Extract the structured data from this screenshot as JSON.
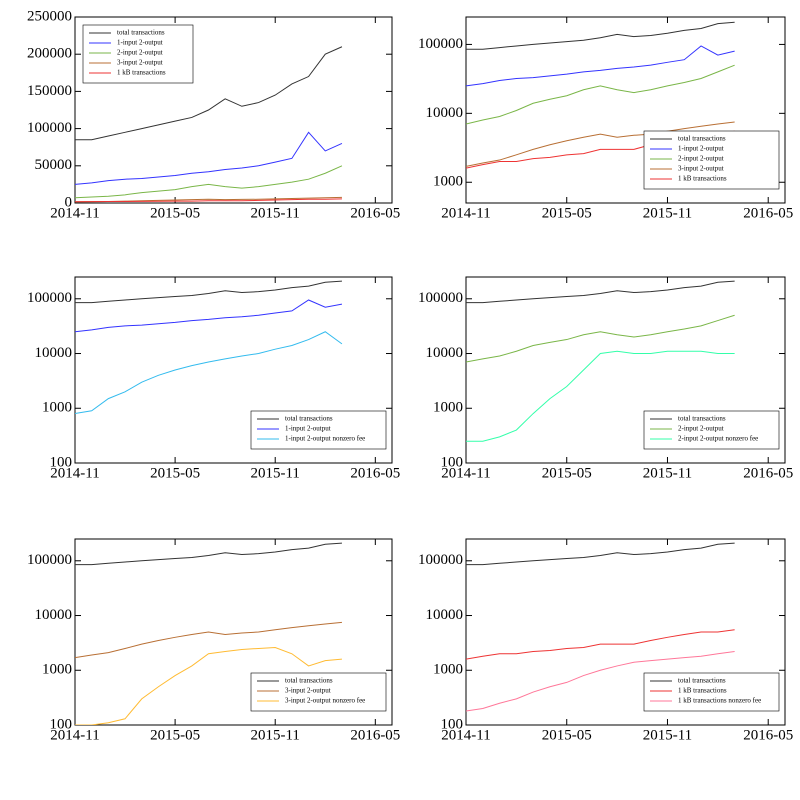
{
  "chart_data": [
    {
      "type": "line",
      "log": false,
      "legend": "upper left",
      "x": [
        "2014-11",
        "2014-12",
        "2015-01",
        "2015-02",
        "2015-03",
        "2015-04",
        "2015-05",
        "2015-06",
        "2015-07",
        "2015-08",
        "2015-09",
        "2015-10",
        "2015-11",
        "2015-12",
        "2016-01",
        "2016-02",
        "2016-03"
      ],
      "xlim": [
        "2014-11",
        "2016-06"
      ],
      "xticks": [
        "2014-11",
        "2015-05",
        "2015-11",
        "2016-05"
      ],
      "ylim": [
        0,
        250000
      ],
      "yticks": [
        0,
        50000,
        100000,
        150000,
        200000,
        250000
      ],
      "series": [
        {
          "name": "total transactions",
          "color": "#333333",
          "values": [
            85000,
            85000,
            90000,
            95000,
            100000,
            105000,
            110000,
            115000,
            125000,
            140000,
            130000,
            135000,
            145000,
            160000,
            170000,
            200000,
            210000
          ]
        },
        {
          "name": "1-input 2-output",
          "color": "#3333ff",
          "values": [
            25000,
            27000,
            30000,
            32000,
            33000,
            35000,
            37000,
            40000,
            42000,
            45000,
            47000,
            50000,
            55000,
            60000,
            95000,
            70000,
            80000
          ]
        },
        {
          "name": "2-input 2-output",
          "color": "#7ab648",
          "values": [
            7000,
            8000,
            9000,
            11000,
            14000,
            16000,
            18000,
            22000,
            25000,
            22000,
            20000,
            22000,
            25000,
            28000,
            32000,
            40000,
            50000
          ]
        },
        {
          "name": "3-input 2-output",
          "color": "#b86f34",
          "values": [
            1700,
            1900,
            2100,
            2500,
            3000,
            3500,
            4000,
            4500,
            5000,
            4500,
            4800,
            5000,
            5500,
            6000,
            6500,
            7000,
            7500
          ]
        },
        {
          "name": "1 kB transactions",
          "color": "#ee3333",
          "values": [
            1600,
            1800,
            2000,
            2000,
            2200,
            2300,
            2500,
            2600,
            3000,
            3000,
            3000,
            3500,
            4000,
            4500,
            5000,
            5000,
            5500
          ]
        }
      ]
    },
    {
      "type": "line",
      "log": true,
      "legend": "lower right",
      "x": [
        "2014-11",
        "2014-12",
        "2015-01",
        "2015-02",
        "2015-03",
        "2015-04",
        "2015-05",
        "2015-06",
        "2015-07",
        "2015-08",
        "2015-09",
        "2015-10",
        "2015-11",
        "2015-12",
        "2016-01",
        "2016-02",
        "2016-03"
      ],
      "xlim": [
        "2014-11",
        "2016-06"
      ],
      "xticks": [
        "2014-11",
        "2015-05",
        "2015-11",
        "2016-05"
      ],
      "ylim": [
        500,
        250000
      ],
      "yticks": [
        1000,
        10000,
        100000
      ],
      "series": [
        {
          "name": "total transactions",
          "color": "#333333",
          "values": [
            85000,
            85000,
            90000,
            95000,
            100000,
            105000,
            110000,
            115000,
            125000,
            140000,
            130000,
            135000,
            145000,
            160000,
            170000,
            200000,
            210000
          ]
        },
        {
          "name": "1-input 2-output",
          "color": "#3333ff",
          "values": [
            25000,
            27000,
            30000,
            32000,
            33000,
            35000,
            37000,
            40000,
            42000,
            45000,
            47000,
            50000,
            55000,
            60000,
            95000,
            70000,
            80000
          ]
        },
        {
          "name": "2-input 2-output",
          "color": "#7ab648",
          "values": [
            7000,
            8000,
            9000,
            11000,
            14000,
            16000,
            18000,
            22000,
            25000,
            22000,
            20000,
            22000,
            25000,
            28000,
            32000,
            40000,
            50000
          ]
        },
        {
          "name": "3-input 2-output",
          "color": "#b86f34",
          "values": [
            1700,
            1900,
            2100,
            2500,
            3000,
            3500,
            4000,
            4500,
            5000,
            4500,
            4800,
            5000,
            5500,
            6000,
            6500,
            7000,
            7500
          ]
        },
        {
          "name": "1 kB transactions",
          "color": "#ee3333",
          "values": [
            1600,
            1800,
            2000,
            2000,
            2200,
            2300,
            2500,
            2600,
            3000,
            3000,
            3000,
            3500,
            4000,
            4500,
            5000,
            5000,
            5500
          ]
        }
      ]
    },
    {
      "type": "line",
      "log": true,
      "legend": "lower right",
      "x": [
        "2014-11",
        "2014-12",
        "2015-01",
        "2015-02",
        "2015-03",
        "2015-04",
        "2015-05",
        "2015-06",
        "2015-07",
        "2015-08",
        "2015-09",
        "2015-10",
        "2015-11",
        "2015-12",
        "2016-01",
        "2016-02",
        "2016-03"
      ],
      "xlim": [
        "2014-11",
        "2016-06"
      ],
      "xticks": [
        "2014-11",
        "2015-05",
        "2015-11",
        "2016-05"
      ],
      "ylim": [
        100,
        250000
      ],
      "yticks": [
        100,
        1000,
        10000,
        100000
      ],
      "series": [
        {
          "name": "total transactions",
          "color": "#333333",
          "values": [
            85000,
            85000,
            90000,
            95000,
            100000,
            105000,
            110000,
            115000,
            125000,
            140000,
            130000,
            135000,
            145000,
            160000,
            170000,
            200000,
            210000
          ]
        },
        {
          "name": "1-input 2-output",
          "color": "#3333ff",
          "values": [
            25000,
            27000,
            30000,
            32000,
            33000,
            35000,
            37000,
            40000,
            42000,
            45000,
            47000,
            50000,
            55000,
            60000,
            95000,
            70000,
            80000
          ]
        },
        {
          "name": "1-input 2-output nonzero fee",
          "color": "#33bbee",
          "values": [
            800,
            900,
            1500,
            2000,
            3000,
            4000,
            5000,
            6000,
            7000,
            8000,
            9000,
            10000,
            12000,
            14000,
            18000,
            25000,
            15000
          ]
        }
      ]
    },
    {
      "type": "line",
      "log": true,
      "legend": "lower right",
      "x": [
        "2014-11",
        "2014-12",
        "2015-01",
        "2015-02",
        "2015-03",
        "2015-04",
        "2015-05",
        "2015-06",
        "2015-07",
        "2015-08",
        "2015-09",
        "2015-10",
        "2015-11",
        "2015-12",
        "2016-01",
        "2016-02",
        "2016-03"
      ],
      "xlim": [
        "2014-11",
        "2016-06"
      ],
      "xticks": [
        "2014-11",
        "2015-05",
        "2015-11",
        "2016-05"
      ],
      "ylim": [
        100,
        250000
      ],
      "yticks": [
        100,
        1000,
        10000,
        100000
      ],
      "series": [
        {
          "name": "total transactions",
          "color": "#333333",
          "values": [
            85000,
            85000,
            90000,
            95000,
            100000,
            105000,
            110000,
            115000,
            125000,
            140000,
            130000,
            135000,
            145000,
            160000,
            170000,
            200000,
            210000
          ]
        },
        {
          "name": "2-input 2-output",
          "color": "#7ab648",
          "values": [
            7000,
            8000,
            9000,
            11000,
            14000,
            16000,
            18000,
            22000,
            25000,
            22000,
            20000,
            22000,
            25000,
            28000,
            32000,
            40000,
            50000
          ]
        },
        {
          "name": "2-input 2-output nonzero fee",
          "color": "#33ffaa",
          "values": [
            250,
            250,
            300,
            400,
            800,
            1500,
            2500,
            5000,
            10000,
            11000,
            10000,
            10000,
            11000,
            11000,
            11000,
            10000,
            10000
          ]
        }
      ]
    },
    {
      "type": "line",
      "log": true,
      "legend": "lower right",
      "x": [
        "2014-11",
        "2014-12",
        "2015-01",
        "2015-02",
        "2015-03",
        "2015-04",
        "2015-05",
        "2015-06",
        "2015-07",
        "2015-08",
        "2015-09",
        "2015-10",
        "2015-11",
        "2015-12",
        "2016-01",
        "2016-02",
        "2016-03"
      ],
      "xlim": [
        "2014-11",
        "2016-06"
      ],
      "xticks": [
        "2014-11",
        "2015-05",
        "2015-11",
        "2016-05"
      ],
      "ylim": [
        100,
        250000
      ],
      "yticks": [
        100,
        1000,
        10000,
        100000
      ],
      "series": [
        {
          "name": "total transactions",
          "color": "#333333",
          "values": [
            85000,
            85000,
            90000,
            95000,
            100000,
            105000,
            110000,
            115000,
            125000,
            140000,
            130000,
            135000,
            145000,
            160000,
            170000,
            200000,
            210000
          ]
        },
        {
          "name": "3-input 2-output",
          "color": "#b86f34",
          "values": [
            1700,
            1900,
            2100,
            2500,
            3000,
            3500,
            4000,
            4500,
            5000,
            4500,
            4800,
            5000,
            5500,
            6000,
            6500,
            7000,
            7500
          ]
        },
        {
          "name": "3-input 2-output nonzero fee",
          "color": "#ffbb33",
          "values": [
            100,
            100,
            110,
            130,
            300,
            500,
            800,
            1200,
            2000,
            2200,
            2400,
            2500,
            2600,
            2000,
            1200,
            1500,
            1600
          ]
        }
      ]
    },
    {
      "type": "line",
      "log": true,
      "legend": "lower right",
      "x": [
        "2014-11",
        "2014-12",
        "2015-01",
        "2015-02",
        "2015-03",
        "2015-04",
        "2015-05",
        "2015-06",
        "2015-07",
        "2015-08",
        "2015-09",
        "2015-10",
        "2015-11",
        "2015-12",
        "2016-01",
        "2016-02",
        "2016-03"
      ],
      "xlim": [
        "2014-11",
        "2016-06"
      ],
      "xticks": [
        "2014-11",
        "2015-05",
        "2015-11",
        "2016-05"
      ],
      "ylim": [
        100,
        250000
      ],
      "yticks": [
        100,
        1000,
        10000,
        100000
      ],
      "series": [
        {
          "name": "total transactions",
          "color": "#333333",
          "values": [
            85000,
            85000,
            90000,
            95000,
            100000,
            105000,
            110000,
            115000,
            125000,
            140000,
            130000,
            135000,
            145000,
            160000,
            170000,
            200000,
            210000
          ]
        },
        {
          "name": "1 kB transactions",
          "color": "#ee3333",
          "values": [
            1600,
            1800,
            2000,
            2000,
            2200,
            2300,
            2500,
            2600,
            3000,
            3000,
            3000,
            3500,
            4000,
            4500,
            5000,
            5000,
            5500
          ]
        },
        {
          "name": "1 kB transactions nonzero fee",
          "color": "#ff7799",
          "values": [
            180,
            200,
            250,
            300,
            400,
            500,
            600,
            800,
            1000,
            1200,
            1400,
            1500,
            1600,
            1700,
            1800,
            2000,
            2200
          ]
        }
      ]
    }
  ]
}
